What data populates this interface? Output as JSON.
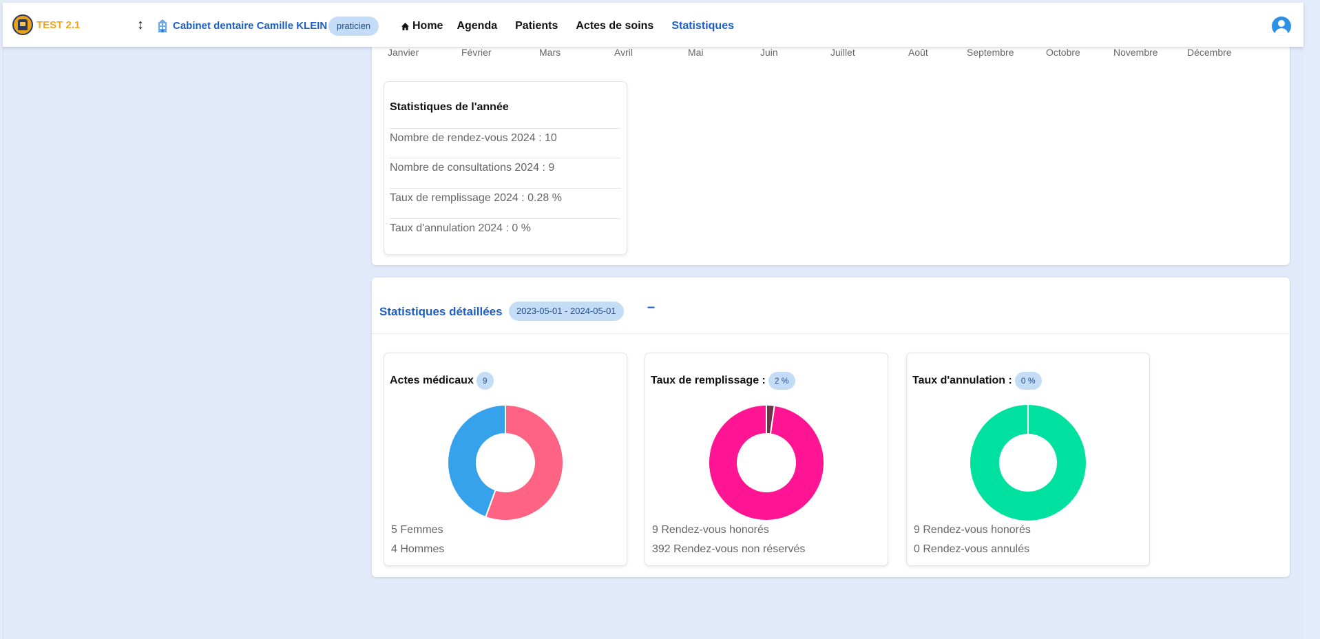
{
  "navbar": {
    "brand": "TEST 2.1",
    "cabinet": "Cabinet dentaire Camille KLEIN",
    "role": "praticien",
    "menu": {
      "home": "Home",
      "agenda": "Agenda",
      "patients": "Patients",
      "actes": "Actes de soins",
      "stats": "Statistiques"
    }
  },
  "months": [
    "Janvier",
    "Février",
    "Mars",
    "Avril",
    "Mai",
    "Juin",
    "Juillet",
    "Août",
    "Septembre",
    "Octobre",
    "Novembre",
    "Décembre"
  ],
  "year_stats": {
    "title": "Statistiques de l'année",
    "rows": [
      "Nombre de rendez-vous 2024 : 10",
      "Nombre de consultations 2024 : 9",
      "Taux de remplissage 2024 : 0.28 %",
      "Taux d'annulation 2024 : 0 %"
    ]
  },
  "detail": {
    "title": "Statistiques détaillées",
    "date_range": "2023-05-01 - 2024-05-01",
    "minus": "–"
  },
  "chart_data": [
    {
      "type": "pie",
      "title": "Actes médicaux",
      "badge": "9",
      "series": [
        {
          "name": "Femmes",
          "value": 5,
          "color": "#ff6384"
        },
        {
          "name": "Hommes",
          "value": 4,
          "color": "#36a2eb"
        }
      ],
      "lines": [
        "5 Femmes",
        "4 Hommes"
      ]
    },
    {
      "type": "pie",
      "title": "Taux de remplissage :",
      "badge": "2 %",
      "series": [
        {
          "name": "Rendez-vous honorés",
          "value": 9,
          "color": "#6b3548"
        },
        {
          "name": "Rendez-vous non réservés",
          "value": 392,
          "color": "#ff1493"
        }
      ],
      "lines": [
        "9 Rendez-vous honorés",
        "392 Rendez-vous non réservés"
      ]
    },
    {
      "type": "pie",
      "title": "Taux d'annulation :",
      "badge": "0 %",
      "series": [
        {
          "name": "Rendez-vous honorés",
          "value": 9,
          "color": "#00e09e"
        },
        {
          "name": "Rendez-vous annulés",
          "value": 0,
          "color": "#ff6384"
        }
      ],
      "lines": [
        "9 Rendez-vous honorés",
        "0 Rendez-vous annulés"
      ]
    }
  ]
}
